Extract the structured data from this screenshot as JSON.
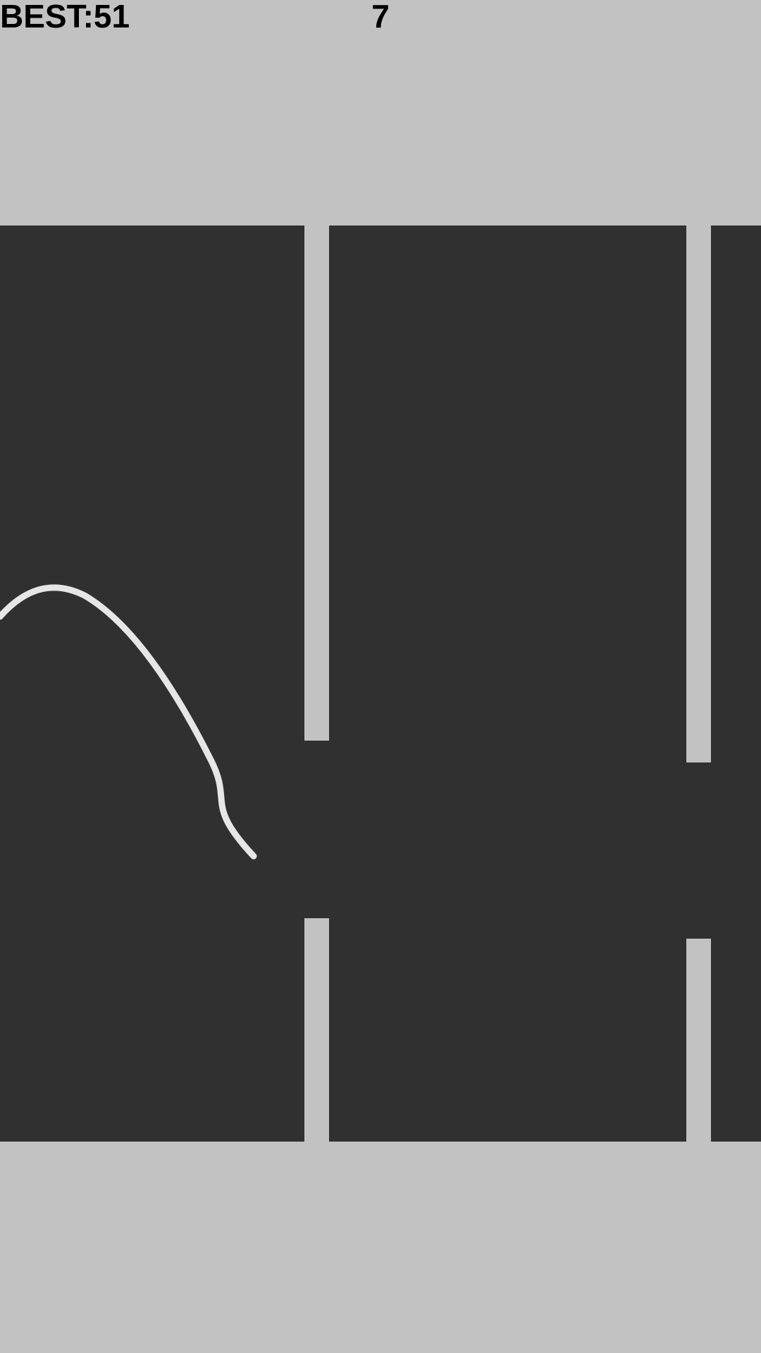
{
  "hud": {
    "best_label": "BEST:51",
    "score": "7"
  },
  "colors": {
    "background": "#c2c2c2",
    "track": "#303030",
    "wall": "#c2c2c2",
    "trail": "#e6e6e6",
    "text": "#000000"
  },
  "entities": {
    "walls": [
      {
        "name": "wall-1",
        "gap": "open"
      },
      {
        "name": "wall-2",
        "gap": "open"
      }
    ],
    "trail": {
      "name": "snake-trail"
    }
  }
}
